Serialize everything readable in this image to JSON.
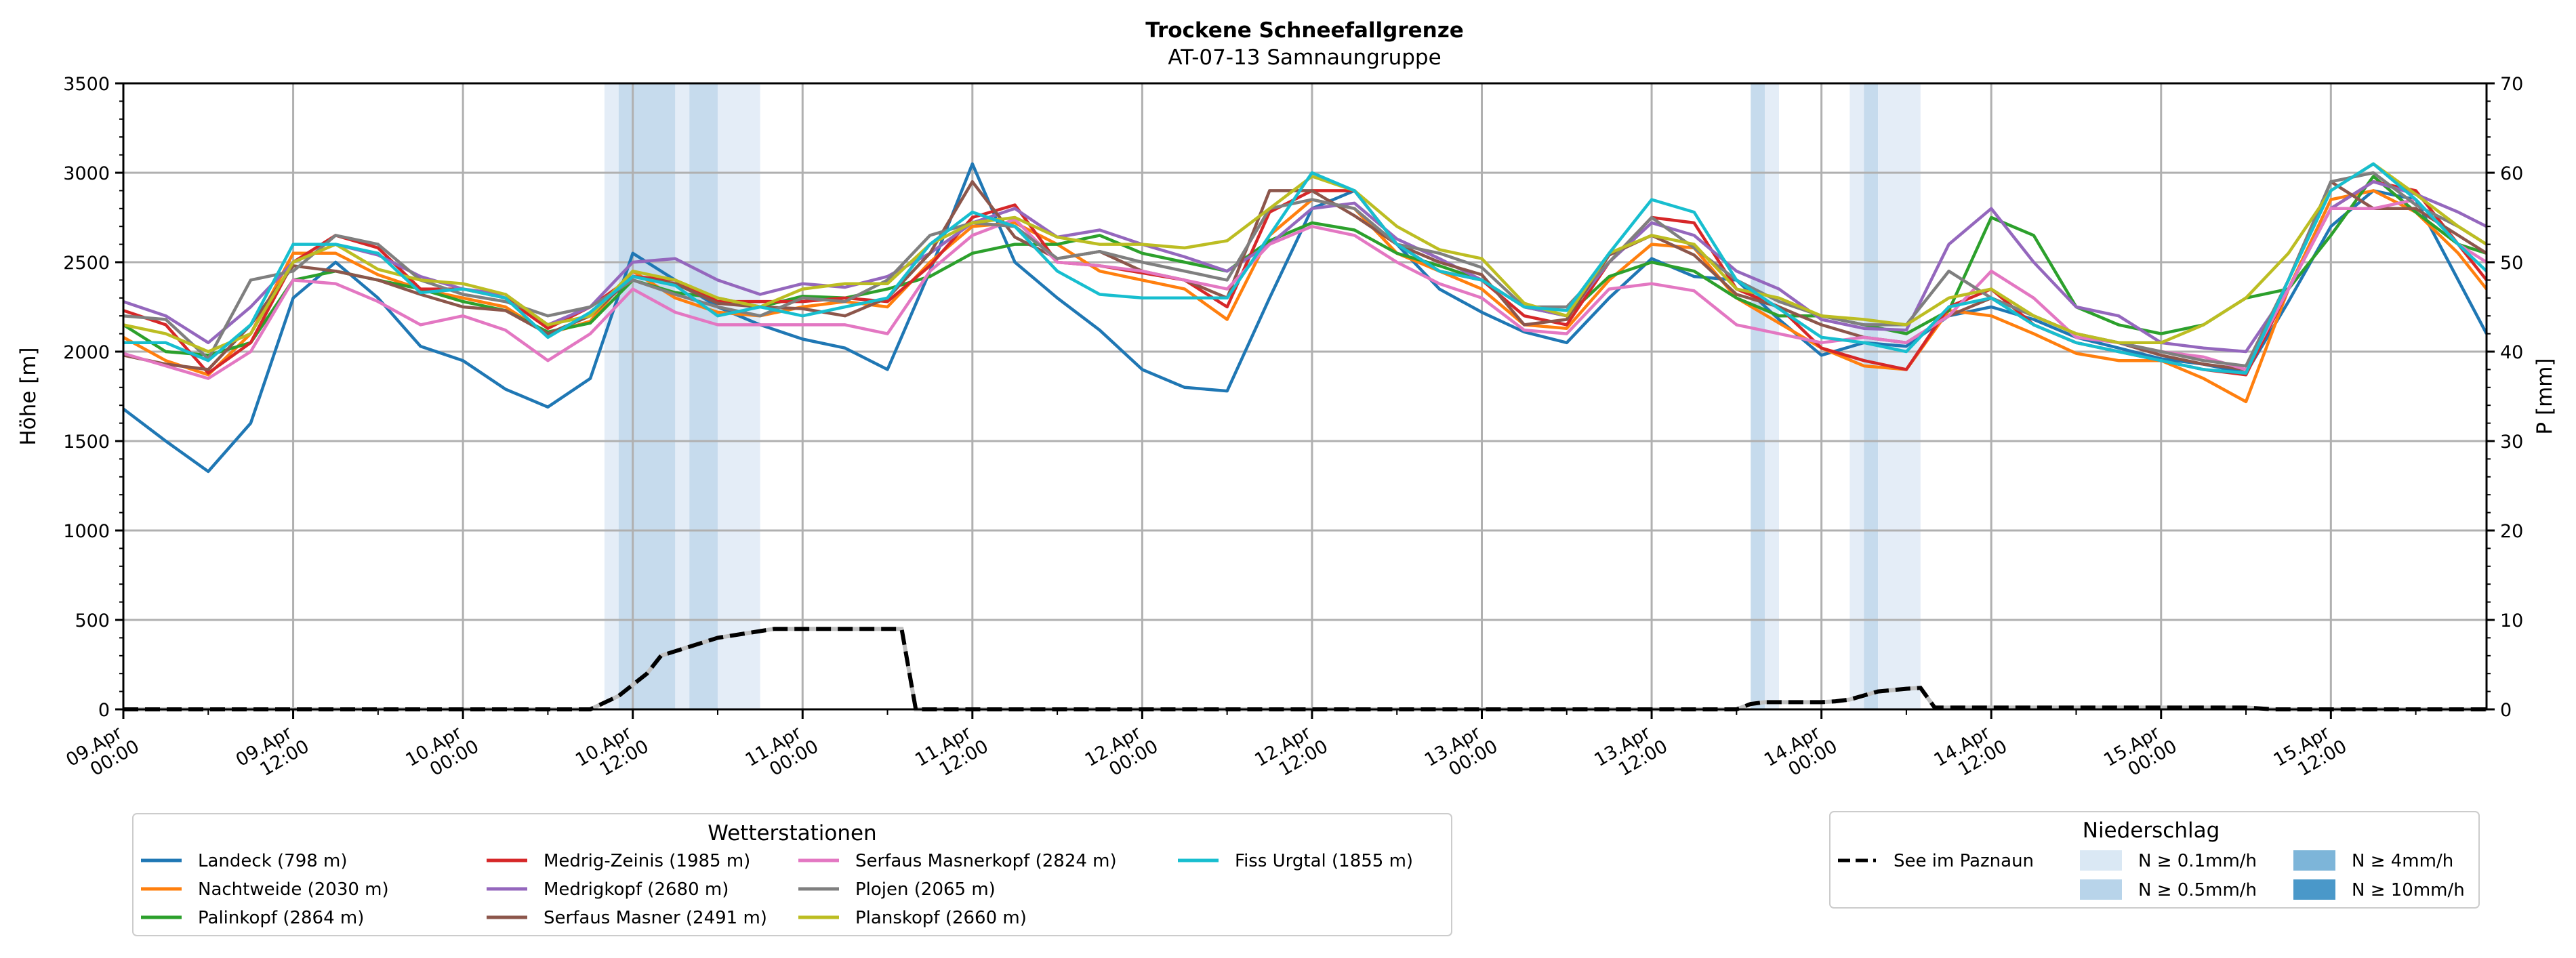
{
  "chart_data": {
    "type": "line",
    "title": "Trockene Schneefallgrenze",
    "subtitle": "AT-07-13 Samnaungruppe",
    "ylabel": "Höhe [m]",
    "y2label": "P [mm]",
    "ylim": [
      0,
      3500
    ],
    "y2lim": [
      0,
      70
    ],
    "yticks": [
      "0",
      "500",
      "1000",
      "1500",
      "2000",
      "2500",
      "3000",
      "3500"
    ],
    "y2ticks": [
      "0",
      "10",
      "20",
      "30",
      "40",
      "50",
      "60",
      "70"
    ],
    "grid": true,
    "x_unit": "hours since 09.Apr 00:00",
    "xlim": [
      0,
      167
    ],
    "xticks": [
      {
        "h": 0,
        "line1": "09.Apr",
        "line2": "00:00"
      },
      {
        "h": 12,
        "line1": "09.Apr",
        "line2": "12:00"
      },
      {
        "h": 24,
        "line1": "10.Apr",
        "line2": "00:00"
      },
      {
        "h": 36,
        "line1": "10.Apr",
        "line2": "12:00"
      },
      {
        "h": 48,
        "line1": "11.Apr",
        "line2": "00:00"
      },
      {
        "h": 60,
        "line1": "11.Apr",
        "line2": "12:00"
      },
      {
        "h": 72,
        "line1": "12.Apr",
        "line2": "00:00"
      },
      {
        "h": 84,
        "line1": "12.Apr",
        "line2": "12:00"
      },
      {
        "h": 96,
        "line1": "13.Apr",
        "line2": "00:00"
      },
      {
        "h": 108,
        "line1": "13.Apr",
        "line2": "12:00"
      },
      {
        "h": 120,
        "line1": "14.Apr",
        "line2": "00:00"
      },
      {
        "h": 132,
        "line1": "14.Apr",
        "line2": "12:00"
      },
      {
        "h": 144,
        "line1": "15.Apr",
        "line2": "00:00"
      },
      {
        "h": 156,
        "line1": "15.Apr",
        "line2": "12:00"
      }
    ],
    "x": [
      0,
      3,
      6,
      9,
      12,
      15,
      18,
      21,
      24,
      27,
      30,
      33,
      36,
      39,
      42,
      45,
      48,
      51,
      54,
      57,
      60,
      63,
      66,
      69,
      72,
      75,
      78,
      81,
      84,
      87,
      90,
      93,
      96,
      99,
      102,
      105,
      108,
      111,
      114,
      117,
      120,
      123,
      126,
      129,
      132,
      135,
      138,
      141,
      144,
      147,
      150,
      153,
      156,
      159,
      162,
      165,
      167
    ],
    "series": [
      {
        "name": "Landeck (798 m)",
        "color": "#1f77b4",
        "values": [
          1680,
          1500,
          1330,
          1600,
          2300,
          2500,
          2300,
          2030,
          1950,
          1790,
          1690,
          1850,
          2550,
          2400,
          2250,
          2150,
          2070,
          2020,
          1900,
          2450,
          3050,
          2500,
          2300,
          2120,
          1900,
          1800,
          1780,
          2300,
          2800,
          2900,
          2600,
          2350,
          2220,
          2110,
          2050,
          2300,
          2520,
          2420,
          2400,
          2180,
          1980,
          2050,
          2030,
          2200,
          2250,
          2180,
          2080,
          2020,
          1960,
          1930,
          1880,
          2280,
          2700,
          2900,
          2850,
          2400,
          2100
        ]
      },
      {
        "name": "Nachtweide (2030 m)",
        "color": "#ff7f0e",
        "values": [
          2080,
          1950,
          1870,
          2100,
          2550,
          2550,
          2430,
          2350,
          2300,
          2250,
          2100,
          2170,
          2450,
          2300,
          2220,
          2200,
          2250,
          2280,
          2250,
          2500,
          2700,
          2720,
          2600,
          2450,
          2400,
          2350,
          2180,
          2650,
          2850,
          2800,
          2550,
          2450,
          2350,
          2150,
          2130,
          2400,
          2600,
          2580,
          2300,
          2160,
          2020,
          1920,
          1900,
          2230,
          2200,
          2100,
          1990,
          1950,
          1950,
          1850,
          1720,
          2350,
          2850,
          2900,
          2780,
          2550,
          2350
        ]
      },
      {
        "name": "Palinkopf (2864 m)",
        "color": "#2ca02c",
        "values": [
          2150,
          2000,
          1980,
          2050,
          2400,
          2450,
          2400,
          2350,
          2280,
          2230,
          2110,
          2160,
          2400,
          2330,
          2300,
          2250,
          2310,
          2300,
          2350,
          2420,
          2550,
          2600,
          2600,
          2650,
          2550,
          2500,
          2450,
          2620,
          2720,
          2680,
          2550,
          2480,
          2400,
          2250,
          2200,
          2420,
          2500,
          2450,
          2300,
          2200,
          2200,
          2150,
          2100,
          2230,
          2750,
          2650,
          2250,
          2150,
          2100,
          2150,
          2300,
          2350,
          2650,
          2980,
          2780,
          2600,
          2550
        ]
      },
      {
        "name": "Medrig-Zeinis (1985 m)",
        "color": "#d62728",
        "values": [
          2230,
          2150,
          1880,
          2050,
          2500,
          2650,
          2580,
          2350,
          2350,
          2300,
          2130,
          2250,
          2420,
          2400,
          2280,
          2280,
          2280,
          2300,
          2280,
          2480,
          2750,
          2820,
          2500,
          2480,
          2440,
          2400,
          2250,
          2780,
          2900,
          2900,
          2600,
          2450,
          2400,
          2200,
          2150,
          2500,
          2750,
          2720,
          2350,
          2250,
          2020,
          1950,
          1900,
          2250,
          2350,
          2150,
          2050,
          2000,
          1950,
          1900,
          1870,
          2350,
          2800,
          2950,
          2900,
          2600,
          2400
        ]
      },
      {
        "name": "Medrigkopf (2680 m)",
        "color": "#9467bd",
        "values": [
          2280,
          2200,
          2050,
          2250,
          2500,
          2600,
          2540,
          2420,
          2350,
          2320,
          2150,
          2250,
          2500,
          2520,
          2400,
          2320,
          2380,
          2360,
          2420,
          2550,
          2720,
          2800,
          2640,
          2680,
          2600,
          2530,
          2450,
          2600,
          2800,
          2830,
          2630,
          2520,
          2400,
          2250,
          2200,
          2500,
          2720,
          2650,
          2450,
          2350,
          2180,
          2130,
          2120,
          2600,
          2800,
          2500,
          2250,
          2200,
          2050,
          2020,
          2000,
          2350,
          2800,
          2950,
          2880,
          2780,
          2700
        ]
      },
      {
        "name": "Serfaus Masner (2491 m)",
        "color": "#8c564b",
        "values": [
          1980,
          1930,
          1900,
          2150,
          2480,
          2450,
          2400,
          2320,
          2250,
          2230,
          2100,
          2200,
          2420,
          2380,
          2270,
          2250,
          2240,
          2200,
          2300,
          2550,
          2950,
          2640,
          2520,
          2560,
          2450,
          2400,
          2300,
          2900,
          2900,
          2760,
          2600,
          2500,
          2430,
          2150,
          2180,
          2540,
          2650,
          2540,
          2320,
          2250,
          2150,
          2080,
          2050,
          2200,
          2300,
          2200,
          2100,
          2050,
          1980,
          1930,
          1900,
          2400,
          2950,
          2800,
          2800,
          2650,
          2550
        ]
      },
      {
        "name": "Serfaus Masnerkopf (2824 m)",
        "color": "#e377c2",
        "values": [
          1990,
          1920,
          1850,
          2000,
          2400,
          2380,
          2280,
          2150,
          2200,
          2120,
          1950,
          2100,
          2350,
          2220,
          2150,
          2150,
          2150,
          2150,
          2100,
          2450,
          2650,
          2740,
          2500,
          2480,
          2450,
          2400,
          2350,
          2600,
          2700,
          2650,
          2500,
          2380,
          2300,
          2120,
          2100,
          2350,
          2380,
          2340,
          2150,
          2100,
          2050,
          2080,
          2050,
          2200,
          2450,
          2300,
          2080,
          2050,
          2000,
          1970,
          1900,
          2350,
          2800,
          2800,
          2850,
          2600,
          2500
        ]
      },
      {
        "name": "Plojen (2065 m)",
        "color": "#7f7f7f",
        "values": [
          2200,
          2180,
          1960,
          2400,
          2450,
          2650,
          2600,
          2400,
          2320,
          2280,
          2200,
          2250,
          2400,
          2320,
          2250,
          2200,
          2300,
          2280,
          2400,
          2650,
          2720,
          2700,
          2520,
          2560,
          2500,
          2450,
          2400,
          2800,
          2850,
          2800,
          2600,
          2550,
          2470,
          2250,
          2250,
          2500,
          2750,
          2580,
          2400,
          2280,
          2200,
          2150,
          2150,
          2450,
          2300,
          2200,
          2100,
          2050,
          2000,
          1950,
          1920,
          2400,
          2950,
          3000,
          2820,
          2700,
          2600
        ]
      },
      {
        "name": "Planskopf (2660 m)",
        "color": "#bcbd22",
        "values": [
          2150,
          2100,
          2000,
          2100,
          2500,
          2600,
          2460,
          2400,
          2380,
          2320,
          2150,
          2200,
          2450,
          2400,
          2300,
          2250,
          2350,
          2380,
          2380,
          2600,
          2720,
          2750,
          2640,
          2600,
          2600,
          2580,
          2620,
          2800,
          2980,
          2900,
          2700,
          2570,
          2520,
          2270,
          2200,
          2550,
          2650,
          2600,
          2350,
          2300,
          2200,
          2180,
          2150,
          2300,
          2350,
          2200,
          2100,
          2050,
          2050,
          2150,
          2300,
          2550,
          2900,
          3050,
          2880,
          2700,
          2600
        ]
      },
      {
        "name": "Fiss Urgtal  (1855 m)",
        "color": "#17becf",
        "values": [
          2050,
          2050,
          1950,
          2150,
          2600,
          2600,
          2550,
          2330,
          2350,
          2300,
          2080,
          2220,
          2420,
          2370,
          2200,
          2250,
          2200,
          2250,
          2300,
          2600,
          2780,
          2700,
          2450,
          2320,
          2300,
          2300,
          2300,
          2650,
          3000,
          2900,
          2600,
          2450,
          2400,
          2250,
          2230,
          2550,
          2850,
          2780,
          2400,
          2240,
          2080,
          2050,
          2000,
          2250,
          2300,
          2150,
          2050,
          2000,
          1950,
          1900,
          1880,
          2400,
          2900,
          3050,
          2850,
          2600,
          2450
        ]
      }
    ],
    "secondary_series": {
      "name": "See im Paznaun",
      "color": "#000000",
      "style": "dashed",
      "axis": "right",
      "x": [
        0,
        33,
        35,
        37,
        38,
        40,
        42,
        44,
        46,
        48,
        50,
        52,
        54,
        55,
        56,
        58,
        114,
        115,
        116,
        118,
        120,
        121,
        122,
        124,
        126,
        127,
        128,
        130,
        150,
        152,
        167
      ],
      "values": [
        0,
        0,
        1.5,
        4,
        6,
        7,
        8,
        8.5,
        9,
        9,
        9,
        9,
        9,
        9,
        0,
        0,
        0,
        0.6,
        0.8,
        0.8,
        0.8,
        0.9,
        1.1,
        2.0,
        2.3,
        2.4,
        0.2,
        0.2,
        0.2,
        0,
        0
      ]
    },
    "precip_bands": [
      {
        "start": 34,
        "end": 35,
        "level": "0.1"
      },
      {
        "start": 35,
        "end": 39,
        "level": "0.5"
      },
      {
        "start": 39,
        "end": 40,
        "level": "0.1"
      },
      {
        "start": 40,
        "end": 42,
        "level": "0.5"
      },
      {
        "start": 42,
        "end": 45,
        "level": "0.1"
      },
      {
        "start": 115,
        "end": 116,
        "level": "0.5"
      },
      {
        "start": 116,
        "end": 117,
        "level": "0.1"
      },
      {
        "start": 122,
        "end": 123,
        "level": "0.1"
      },
      {
        "start": 123,
        "end": 124,
        "level": "0.5"
      },
      {
        "start": 124,
        "end": 127,
        "level": "0.1"
      }
    ],
    "legend_stations": {
      "title": "Wetterstationen",
      "placement": "bottom-left"
    },
    "legend_precip": {
      "title": "Niederschlag",
      "placement": "bottom-right",
      "line_label": "See im Paznaun",
      "items": [
        {
          "label": "N ≥ 0.1mm/h",
          "color": "#dae8f4"
        },
        {
          "label": "N ≥ 0.5mm/h",
          "color": "#b8d4ea"
        },
        {
          "label": "N ≥ 4mm/h",
          "color": "#7db5d9"
        },
        {
          "label": "N ≥ 10mm/h",
          "color": "#4a98c9"
        }
      ]
    },
    "band_colors": {
      "0.1": "#e4edf7",
      "0.5": "#c6dbed"
    }
  }
}
